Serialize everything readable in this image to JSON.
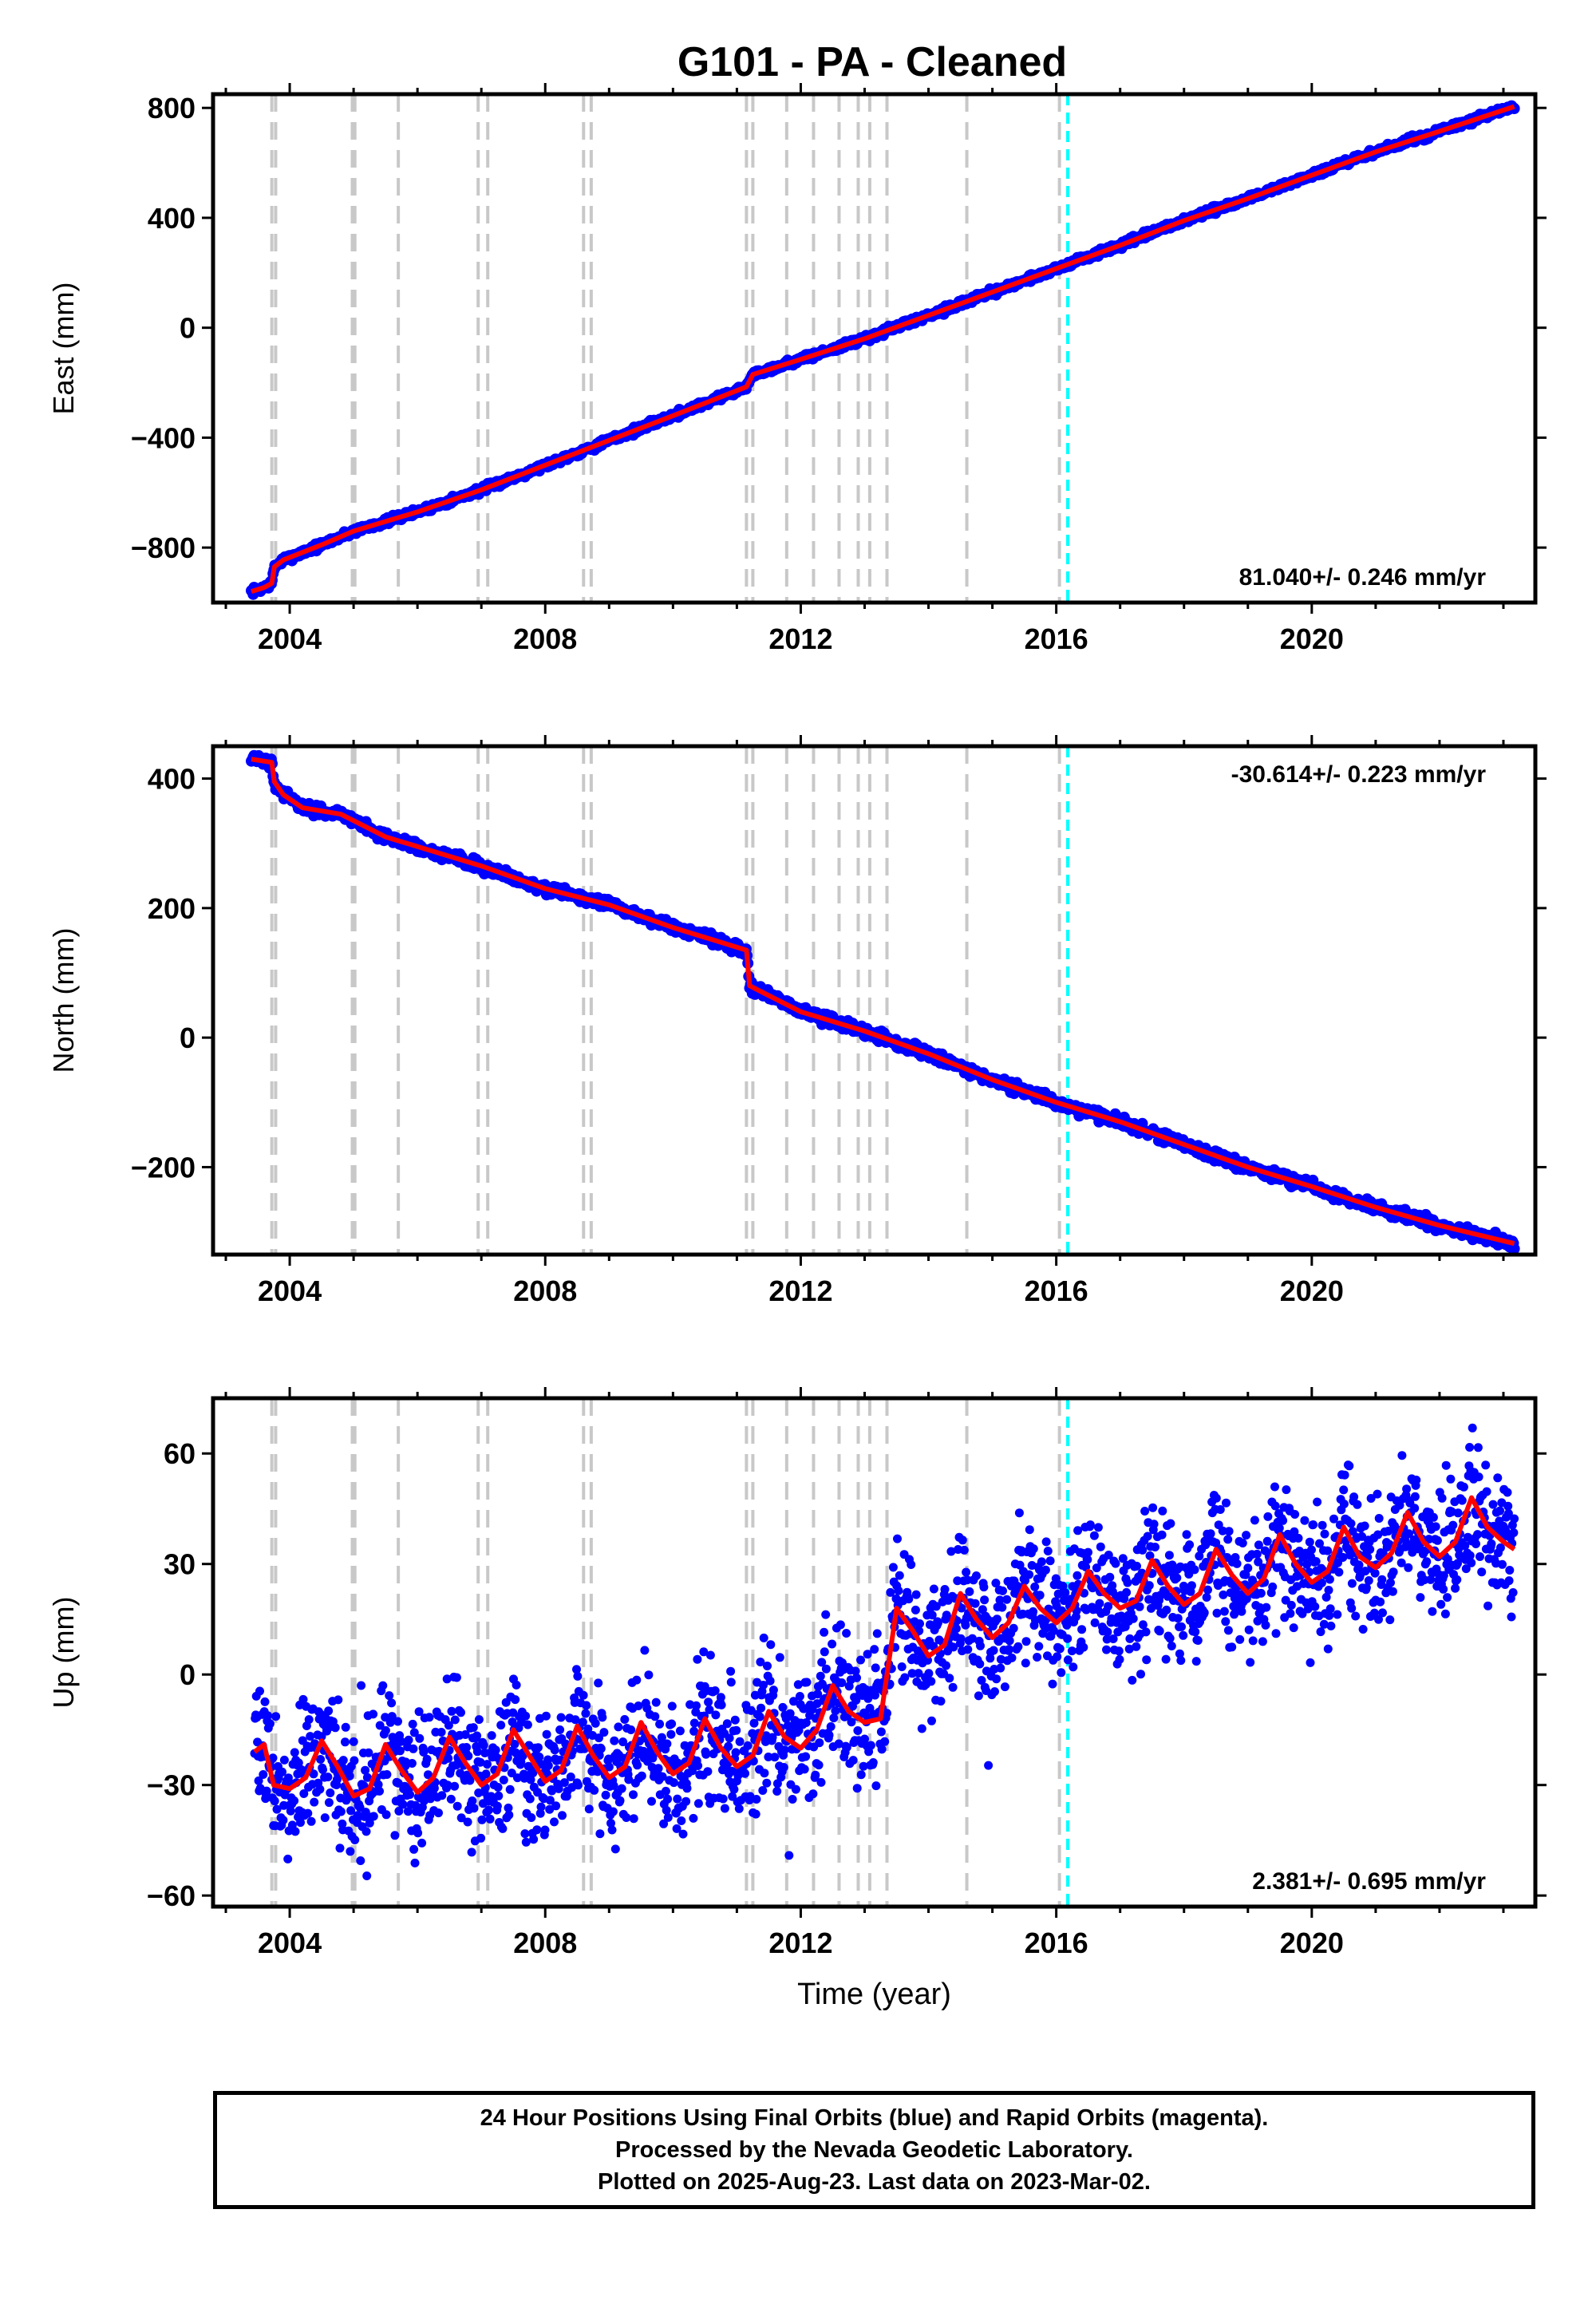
{
  "page": {
    "title": "G101  - PA - Cleaned"
  },
  "colors": {
    "data_points": "#0000ff",
    "model_line": "#ff0000",
    "event_lines": "#c8c8c8",
    "equipment_change_line": "#00ffff",
    "frame": "#000000"
  },
  "chart_data": [
    {
      "type": "scatter",
      "component": "east",
      "ylabel": "East (mm)",
      "xlabel": "",
      "xlim": [
        2002.8,
        2023.5
      ],
      "ylim": [
        -1000,
        850
      ],
      "yticks": [
        -800,
        -400,
        0,
        400,
        800
      ],
      "ytick_labels": [
        "−800",
        "−400",
        "0",
        "400",
        "800"
      ],
      "xticks": [
        2004,
        2008,
        2012,
        2016,
        2020
      ],
      "xtick_labels": [
        "2004",
        "2008",
        "2012",
        "2016",
        "2020"
      ],
      "rate_label": "81.040+/- 0.246 mm/yr",
      "rate_label_position": "bottom-right",
      "grid": false,
      "series": [
        {
          "marker": "dots",
          "x": [
            2003.4,
            2003.6,
            2003.72,
            2003.76,
            2003.9,
            2004.5,
            2005.0,
            2006.0,
            2007.0,
            2008.0,
            2009.0,
            2010.0,
            2011.15,
            2011.25,
            2012.0,
            2013.0,
            2014.0,
            2015.0,
            2016.0,
            2017.0,
            2018.0,
            2019.0,
            2020.0,
            2021.0,
            2022.0,
            2023.17
          ],
          "y": [
            -960,
            -945,
            -930,
            -870,
            -845,
            -790,
            -740,
            -670,
            -590,
            -500,
            -410,
            -320,
            -215,
            -170,
            -115,
            -40,
            45,
            130,
            215,
            300,
            390,
            470,
            555,
            640,
            715,
            805
          ]
        },
        {
          "marker": "line",
          "x": [
            2003.4,
            2003.6,
            2003.72,
            2003.76,
            2003.9,
            2004.5,
            2005.0,
            2006.0,
            2007.0,
            2008.0,
            2009.0,
            2010.0,
            2011.15,
            2011.25,
            2012.0,
            2013.0,
            2014.0,
            2015.0,
            2016.0,
            2017.0,
            2018.0,
            2019.0,
            2020.0,
            2021.0,
            2022.0,
            2023.17
          ],
          "y": [
            -960,
            -945,
            -930,
            -870,
            -845,
            -790,
            -740,
            -670,
            -590,
            -500,
            -410,
            -320,
            -215,
            -170,
            -115,
            -40,
            45,
            130,
            215,
            300,
            390,
            470,
            555,
            640,
            715,
            805
          ]
        }
      ]
    },
    {
      "type": "scatter",
      "component": "north",
      "ylabel": "North (mm)",
      "xlabel": "",
      "xlim": [
        2002.8,
        2023.5
      ],
      "ylim": [
        -335,
        450
      ],
      "yticks": [
        -200,
        0,
        200,
        400
      ],
      "ytick_labels": [
        "−200",
        "0",
        "200",
        "400"
      ],
      "xticks": [
        2004,
        2008,
        2012,
        2016,
        2020
      ],
      "xtick_labels": [
        "2004",
        "2008",
        "2012",
        "2016",
        "2020"
      ],
      "rate_label": "-30.614+/- 0.223 mm/yr",
      "rate_label_position": "top-right",
      "grid": false,
      "series": [
        {
          "marker": "dots",
          "x": [
            2003.4,
            2003.72,
            2003.76,
            2003.9,
            2004.2,
            2004.8,
            2005.5,
            2006.0,
            2007.0,
            2008.0,
            2009.0,
            2010.0,
            2011.15,
            2011.2,
            2011.5,
            2012.0,
            2013.0,
            2014.0,
            2015.0,
            2016.0,
            2017.0,
            2018.0,
            2019.0,
            2020.0,
            2021.0,
            2022.0,
            2023.17
          ],
          "y": [
            430,
            425,
            395,
            375,
            355,
            345,
            310,
            295,
            265,
            230,
            205,
            170,
            135,
            80,
            65,
            40,
            10,
            -25,
            -65,
            -100,
            -130,
            -165,
            -200,
            -230,
            -262,
            -290,
            -318
          ]
        },
        {
          "marker": "line",
          "x": [
            2003.4,
            2003.72,
            2003.76,
            2003.9,
            2004.2,
            2004.8,
            2005.5,
            2006.0,
            2007.0,
            2008.0,
            2009.0,
            2010.0,
            2011.15,
            2011.2,
            2011.5,
            2012.0,
            2013.0,
            2014.0,
            2015.0,
            2016.0,
            2017.0,
            2018.0,
            2019.0,
            2020.0,
            2021.0,
            2022.0,
            2023.17
          ],
          "y": [
            430,
            425,
            395,
            375,
            355,
            345,
            310,
            295,
            265,
            230,
            205,
            170,
            135,
            80,
            65,
            40,
            10,
            -25,
            -65,
            -100,
            -130,
            -165,
            -200,
            -230,
            -262,
            -290,
            -318
          ]
        }
      ]
    },
    {
      "type": "scatter",
      "component": "up",
      "ylabel": "Up (mm)",
      "xlabel": "Time (year)",
      "xlim": [
        2002.8,
        2023.5
      ],
      "ylim": [
        -63,
        75
      ],
      "yticks": [
        -60,
        -30,
        0,
        30,
        60
      ],
      "ytick_labels": [
        "−60",
        "−30",
        "0",
        "30",
        "60"
      ],
      "xticks": [
        2004,
        2008,
        2012,
        2016,
        2020
      ],
      "xtick_labels": [
        "2004",
        "2008",
        "2012",
        "2016",
        "2020"
      ],
      "rate_label": "2.381+/- 0.695 mm/yr",
      "rate_label_position": "bottom-right",
      "grid": false,
      "series": [
        {
          "marker": "dots",
          "x": [
            2003.45,
            2003.6,
            2003.75,
            2004.0,
            2004.25,
            2004.5,
            2004.75,
            2005.0,
            2005.25,
            2005.5,
            2005.75,
            2006.0,
            2006.25,
            2006.5,
            2006.75,
            2007.0,
            2007.25,
            2007.5,
            2007.75,
            2008.0,
            2008.25,
            2008.5,
            2008.75,
            2009.0,
            2009.25,
            2009.5,
            2009.75,
            2010.0,
            2010.25,
            2010.5,
            2010.75,
            2011.0,
            2011.25,
            2011.5,
            2011.75,
            2012.0,
            2012.25,
            2012.5,
            2012.75,
            2013.0,
            2013.25,
            2013.5,
            2013.75,
            2014.0,
            2014.25,
            2014.5,
            2014.75,
            2015.0,
            2015.25,
            2015.5,
            2015.75,
            2016.0,
            2016.25,
            2016.5,
            2016.75,
            2017.0,
            2017.25,
            2017.5,
            2017.75,
            2018.0,
            2018.25,
            2018.5,
            2018.75,
            2019.0,
            2019.25,
            2019.5,
            2019.75,
            2020.0,
            2020.25,
            2020.5,
            2020.75,
            2021.0,
            2021.25,
            2021.5,
            2021.75,
            2022.0,
            2022.25,
            2022.5,
            2022.75,
            2023.0,
            2023.17
          ],
          "y": [
            -21,
            -19,
            -30,
            -31,
            -28,
            -18,
            -25,
            -33,
            -31,
            -19,
            -26,
            -32,
            -28,
            -17,
            -24,
            -30,
            -27,
            -15,
            -22,
            -29,
            -26,
            -14,
            -22,
            -28,
            -25,
            -13,
            -21,
            -27,
            -24,
            -12,
            -20,
            -25,
            -22,
            -10,
            -17,
            -20,
            -15,
            -3,
            -10,
            -13,
            -12,
            18,
            12,
            5,
            8,
            22,
            15,
            10,
            14,
            24,
            18,
            14,
            18,
            28,
            22,
            18,
            20,
            31,
            24,
            19,
            22,
            34,
            27,
            22,
            26,
            38,
            30,
            25,
            28,
            40,
            32,
            29,
            33,
            44,
            36,
            32,
            36,
            48,
            40,
            36,
            34
          ]
        },
        {
          "marker": "line",
          "x": [
            2003.45,
            2003.6,
            2003.75,
            2004.0,
            2004.25,
            2004.5,
            2004.75,
            2005.0,
            2005.25,
            2005.5,
            2005.75,
            2006.0,
            2006.25,
            2006.5,
            2006.75,
            2007.0,
            2007.25,
            2007.5,
            2007.75,
            2008.0,
            2008.25,
            2008.5,
            2008.75,
            2009.0,
            2009.25,
            2009.5,
            2009.75,
            2010.0,
            2010.25,
            2010.5,
            2010.75,
            2011.0,
            2011.25,
            2011.5,
            2011.75,
            2012.0,
            2012.25,
            2012.5,
            2012.75,
            2013.0,
            2013.25,
            2013.5,
            2013.75,
            2014.0,
            2014.25,
            2014.5,
            2014.75,
            2015.0,
            2015.25,
            2015.5,
            2015.75,
            2016.0,
            2016.25,
            2016.5,
            2016.75,
            2017.0,
            2017.25,
            2017.5,
            2017.75,
            2018.0,
            2018.25,
            2018.5,
            2018.75,
            2019.0,
            2019.25,
            2019.5,
            2019.75,
            2020.0,
            2020.25,
            2020.5,
            2020.75,
            2021.0,
            2021.25,
            2021.5,
            2021.75,
            2022.0,
            2022.25,
            2022.5,
            2022.75,
            2023.0,
            2023.17
          ],
          "y": [
            -21,
            -19,
            -30,
            -31,
            -28,
            -18,
            -25,
            -33,
            -31,
            -19,
            -26,
            -32,
            -28,
            -17,
            -24,
            -30,
            -27,
            -15,
            -22,
            -29,
            -26,
            -14,
            -22,
            -28,
            -25,
            -13,
            -21,
            -27,
            -24,
            -12,
            -20,
            -25,
            -22,
            -10,
            -17,
            -20,
            -15,
            -3,
            -10,
            -13,
            -12,
            18,
            12,
            5,
            8,
            22,
            15,
            10,
            14,
            24,
            18,
            14,
            18,
            28,
            22,
            18,
            20,
            31,
            24,
            19,
            22,
            34,
            27,
            22,
            26,
            38,
            30,
            25,
            28,
            40,
            32,
            29,
            33,
            44,
            36,
            32,
            36,
            48,
            40,
            36,
            34
          ]
        }
      ]
    }
  ],
  "events": {
    "gray_dashed_years": [
      2003.72,
      2003.78,
      2004.98,
      2005.02,
      2005.7,
      2006.95,
      2007.1,
      2008.6,
      2008.72,
      2011.15,
      2011.25,
      2011.78,
      2012.2,
      2012.6,
      2012.9,
      2013.08,
      2013.35,
      2014.6,
      2016.05
    ],
    "cyan_dashed_years": [
      2016.18
    ]
  },
  "caption": {
    "line1": "24 Hour Positions Using Final Orbits (blue) and Rapid Orbits (magenta).",
    "line2": "Processed by the Nevada Geodetic Laboratory.",
    "line3": "Plotted on 2025-Aug-23. Last data on 2023-Mar-02."
  }
}
